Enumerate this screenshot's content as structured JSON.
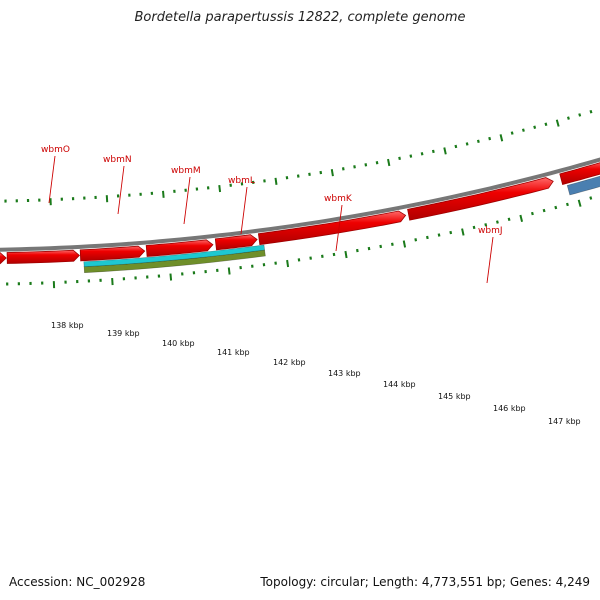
{
  "title": "Bordetella parapertussis 12822, complete genome",
  "accession": "Accession: NC_002928",
  "stats": "Topology: circular; Length: 4,773,551 bp; Genes: 4,249",
  "gene_labels": [
    "wbmO",
    "wbmN",
    "wbmM",
    "wbmL",
    "wbmK",
    "wbmJ"
  ],
  "scale_labels": [
    "138 kbp",
    "139 kbp",
    "140 kbp",
    "141 kbp",
    "142 kbp",
    "143 kbp",
    "144 kbp",
    "145 kbp",
    "146 kbp",
    "147 kbp"
  ],
  "colors": {
    "gene": "#ee0000",
    "gene_highlight": "#ff5a5a",
    "gene_edge": "#a00000",
    "olive_feature": "#6f8f2a",
    "cyan_feature": "#1ec8d0",
    "blue_feature": "#4a7fb0",
    "backbone": "#808080",
    "tick": "#1a7a1a",
    "label": "#cc0000"
  }
}
